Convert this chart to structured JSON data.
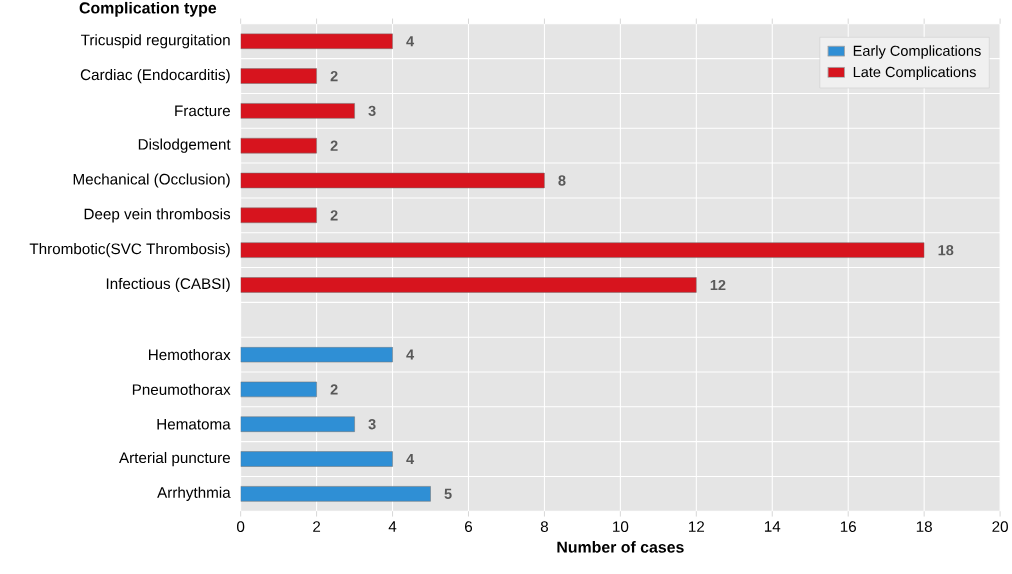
{
  "chart_data": {
    "type": "bar",
    "orientation": "horizontal",
    "ylabel": "Complication type",
    "xlabel": "Number of cases",
    "categories": [
      "Tricuspid regurgitation",
      "Cardiac (Endocarditis)",
      "Fracture",
      "Dislodgement",
      "Mechanical (Occlusion)",
      "Deep vein thrombosis",
      "Thrombotic(SVC Thrombosis)",
      "Infectious (CABSI)",
      null,
      "Hemothorax",
      "Pneumothorax",
      "Hematoma",
      "Arterial puncture",
      "Arrhythmia"
    ],
    "series": [
      {
        "name": "Early Complications",
        "color": "#2f8fd5",
        "values": [
          null,
          null,
          null,
          null,
          null,
          null,
          null,
          null,
          null,
          4,
          2,
          3,
          4,
          5
        ]
      },
      {
        "name": "Late Complications",
        "color": "#d7141e",
        "values": [
          4,
          2,
          3,
          2,
          8,
          2,
          18,
          12,
          null,
          null,
          null,
          null,
          null,
          null
        ]
      }
    ],
    "xlim": [
      0,
      20
    ],
    "xticks": [
      0,
      2,
      4,
      6,
      8,
      10,
      12,
      14,
      16,
      18,
      20
    ],
    "grid": true,
    "legend": "top right",
    "data_labels": true
  }
}
